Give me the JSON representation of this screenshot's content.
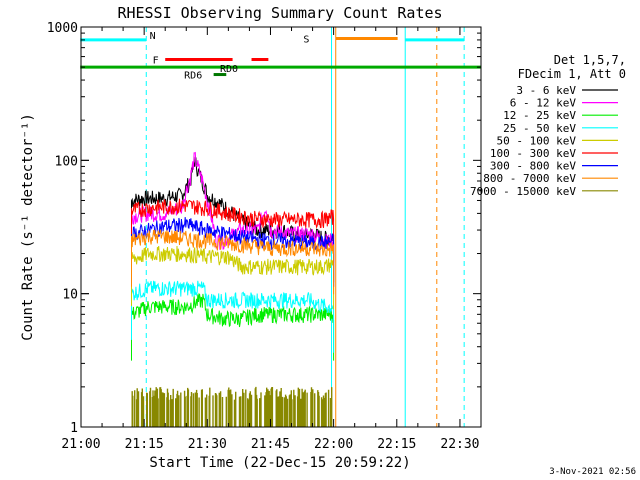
{
  "chart_data": {
    "type": "line",
    "title": "RHESSI Observing Summary Count Rates",
    "xlabel": "Start Time (22-Dec-15 20:59:22)",
    "ylabel": "Count Rate (s⁻¹ detector⁻¹)",
    "yscale": "log",
    "ylim": [
      1,
      1000
    ],
    "xlim_minutes": [
      0,
      95
    ],
    "x_ticks": [
      {
        "label": "21:00",
        "min": 0
      },
      {
        "label": "21:15",
        "min": 15
      },
      {
        "label": "21:30",
        "min": 30
      },
      {
        "label": "21:45",
        "min": 45
      },
      {
        "label": "22:00",
        "min": 60
      },
      {
        "label": "22:15",
        "min": 75
      },
      {
        "label": "22:30",
        "min": 90
      }
    ],
    "y_ticks": [
      {
        "label": "1",
        "v": 1
      },
      {
        "label": "10",
        "v": 10
      },
      {
        "label": "100",
        "v": 100
      },
      {
        "label": "1000",
        "v": 1000
      }
    ],
    "legend_header": [
      "Det 1,5,7,",
      "FDecim 1, Att 0"
    ],
    "legend_position": "right",
    "series": [
      {
        "name": "3 - 6 keV",
        "color": "#000000",
        "points": [
          [
            12,
            50
          ],
          [
            15,
            52
          ],
          [
            20,
            52
          ],
          [
            24,
            55
          ],
          [
            26,
            70
          ],
          [
            27,
            100
          ],
          [
            28,
            80
          ],
          [
            30,
            55
          ],
          [
            34,
            45
          ],
          [
            38,
            35
          ],
          [
            42,
            30
          ],
          [
            48,
            30
          ],
          [
            52,
            27
          ],
          [
            55,
            28
          ],
          [
            58,
            26
          ],
          [
            60,
            27
          ]
        ]
      },
      {
        "name": "6 - 12 keV",
        "color": "#ff00ff",
        "points": [
          [
            12,
            38
          ],
          [
            15,
            40
          ],
          [
            20,
            40
          ],
          [
            24,
            45
          ],
          [
            26,
            75
          ],
          [
            27,
            105
          ],
          [
            28,
            85
          ],
          [
            30,
            50
          ],
          [
            32,
            25
          ],
          [
            34,
            25
          ],
          [
            38,
            30
          ],
          [
            42,
            30
          ],
          [
            44,
            45
          ],
          [
            45,
            30
          ],
          [
            50,
            28
          ],
          [
            55,
            28
          ],
          [
            58,
            25
          ],
          [
            60,
            25
          ]
        ]
      },
      {
        "name": "12 - 25 keV",
        "color": "#00ee00",
        "points": [
          [
            12,
            7
          ],
          [
            16,
            8
          ],
          [
            20,
            8
          ],
          [
            25,
            8
          ],
          [
            29,
            9
          ],
          [
            30,
            7
          ],
          [
            34,
            6.5
          ],
          [
            38,
            6.5
          ],
          [
            42,
            7
          ],
          [
            46,
            7
          ],
          [
            50,
            7
          ],
          [
            54,
            7
          ],
          [
            58,
            7
          ],
          [
            60,
            7
          ]
        ]
      },
      {
        "name": "25 - 50 keV",
        "color": "#00ffff",
        "points": [
          [
            12,
            10
          ],
          [
            16,
            11
          ],
          [
            20,
            11
          ],
          [
            25,
            11
          ],
          [
            29,
            11
          ],
          [
            30,
            9
          ],
          [
            34,
            9
          ],
          [
            38,
            9
          ],
          [
            42,
            9
          ],
          [
            46,
            9
          ],
          [
            50,
            9
          ],
          [
            54,
            9
          ],
          [
            58,
            8
          ],
          [
            60,
            8
          ]
        ]
      },
      {
        "name": "50 - 100 keV",
        "color": "#cccc00",
        "points": [
          [
            12,
            18
          ],
          [
            16,
            20
          ],
          [
            20,
            20
          ],
          [
            25,
            20
          ],
          [
            30,
            19
          ],
          [
            35,
            19
          ],
          [
            38,
            16
          ],
          [
            42,
            16
          ],
          [
            46,
            16
          ],
          [
            50,
            16
          ],
          [
            54,
            16
          ],
          [
            58,
            16
          ],
          [
            60,
            17
          ]
        ]
      },
      {
        "name": "100 - 300 keV",
        "color": "#ff0000",
        "points": [
          [
            12,
            42
          ],
          [
            16,
            44
          ],
          [
            20,
            45
          ],
          [
            25,
            46
          ],
          [
            30,
            44
          ],
          [
            35,
            40
          ],
          [
            40,
            37
          ],
          [
            45,
            36
          ],
          [
            50,
            36
          ],
          [
            55,
            36
          ],
          [
            58,
            36
          ],
          [
            60,
            38
          ]
        ]
      },
      {
        "name": "300 - 800 keV",
        "color": "#0000ff",
        "points": [
          [
            12,
            28
          ],
          [
            16,
            30
          ],
          [
            20,
            32
          ],
          [
            25,
            33
          ],
          [
            30,
            30
          ],
          [
            35,
            28
          ],
          [
            40,
            26
          ],
          [
            45,
            25
          ],
          [
            50,
            25
          ],
          [
            55,
            24
          ],
          [
            58,
            24
          ],
          [
            60,
            25
          ]
        ]
      },
      {
        "name": "800 - 7000 keV",
        "color": "#ff8800",
        "points": [
          [
            12,
            25
          ],
          [
            16,
            27
          ],
          [
            20,
            27
          ],
          [
            25,
            26
          ],
          [
            30,
            25
          ],
          [
            35,
            24
          ],
          [
            40,
            23
          ],
          [
            45,
            22
          ],
          [
            50,
            22
          ],
          [
            55,
            22
          ],
          [
            58,
            21
          ],
          [
            60,
            22
          ]
        ]
      },
      {
        "name": "7000 - 15000 keV",
        "color": "#888800",
        "points": [
          [
            12,
            1.5
          ],
          [
            16,
            1.6
          ],
          [
            20,
            1.6
          ],
          [
            25,
            1.6
          ],
          [
            30,
            1.6
          ],
          [
            34,
            1.5
          ],
          [
            38,
            1.3
          ],
          [
            42,
            1.3
          ],
          [
            46,
            1.2
          ],
          [
            50,
            1.1
          ],
          [
            55,
            1.1
          ],
          [
            60,
            1.1
          ]
        ]
      }
    ],
    "flag_bars": [
      {
        "label": "N",
        "color": "#00ffff",
        "y": 800,
        "ranges": [
          [
            -0.2,
            15.5
          ],
          [
            77,
            91
          ]
        ]
      },
      {
        "label": "S",
        "color": "#ff8800",
        "y": 820,
        "ranges": [
          [
            60.5,
            75.2
          ]
        ]
      },
      {
        "label": "F",
        "color": "#ff0000",
        "y": 570,
        "ranges": [
          [
            20,
            36
          ],
          [
            40.5,
            44.5
          ]
        ]
      },
      {
        "label": "RD0",
        "color": "#00aa00",
        "y": 500,
        "ranges": [
          [
            -0.2,
            95
          ]
        ]
      },
      {
        "label": "RD6",
        "color": "#007700",
        "y": 440,
        "ranges": [
          [
            31.5,
            34.5
          ]
        ]
      }
    ],
    "vertical_lines": [
      {
        "min": 0,
        "color": "#00ffff",
        "style": "solid"
      },
      {
        "min": 15.5,
        "color": "#00ffff",
        "style": "dashed"
      },
      {
        "min": 59.5,
        "color": "#00ffff",
        "style": "solid"
      },
      {
        "min": 60.5,
        "color": "#ff8800",
        "style": "solid"
      },
      {
        "min": 77,
        "color": "#00ffff",
        "style": "solid"
      },
      {
        "min": 84.5,
        "color": "#ff8800",
        "style": "dashed"
      },
      {
        "min": 91,
        "color": "#00ffff",
        "style": "dashed"
      }
    ],
    "grid": false
  },
  "footer": {
    "timestamp": "3-Nov-2021 02:56"
  }
}
